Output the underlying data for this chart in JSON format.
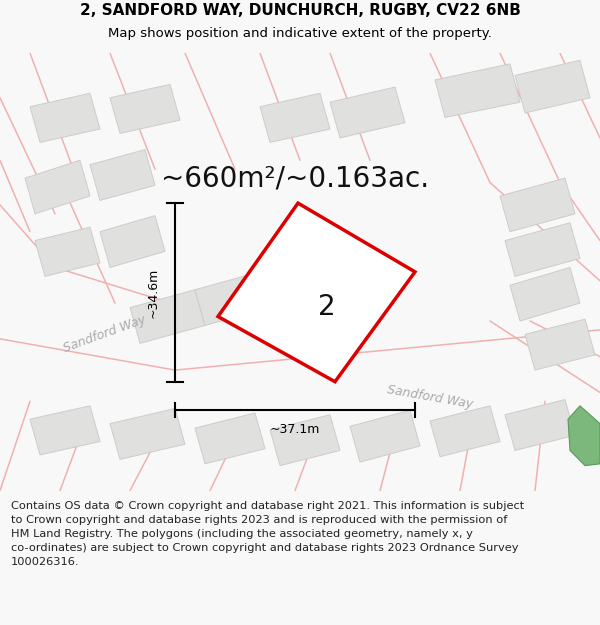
{
  "title_line1": "2, SANDFORD WAY, DUNCHURCH, RUGBY, CV22 6NB",
  "title_line2": "Map shows position and indicative extent of the property.",
  "area_text": "~660m²/~0.163ac.",
  "dimension_width": "~37.1m",
  "dimension_height": "~34.6m",
  "property_number": "2",
  "road_label_left": "Sandford Way",
  "road_label_right": "Sandford Way",
  "footer_text": "Contains OS data © Crown copyright and database right 2021. This information is subject to Crown copyright and database rights 2023 and is reproduced with the permission of HM Land Registry. The polygons (including the associated geometry, namely x, y co-ordinates) are subject to Crown copyright and database rights 2023 Ordnance Survey 100026316.",
  "bg_color": "#f8f8f8",
  "map_bg_color": "#f8f8f5",
  "road_line_color": "#f0b0b0",
  "building_fill": "#e0e0de",
  "building_outline": "#ccccca",
  "property_fill": "#ffffff",
  "property_outline": "#dd0000",
  "green_fill": "#7cb87c",
  "green_outline": "#5a9a5a",
  "title_fontsize": 11,
  "subtitle_fontsize": 9.5,
  "area_fontsize": 20,
  "prop_num_fontsize": 20,
  "dim_fontsize": 9,
  "road_label_fontsize": 9,
  "footer_fontsize": 8.2
}
